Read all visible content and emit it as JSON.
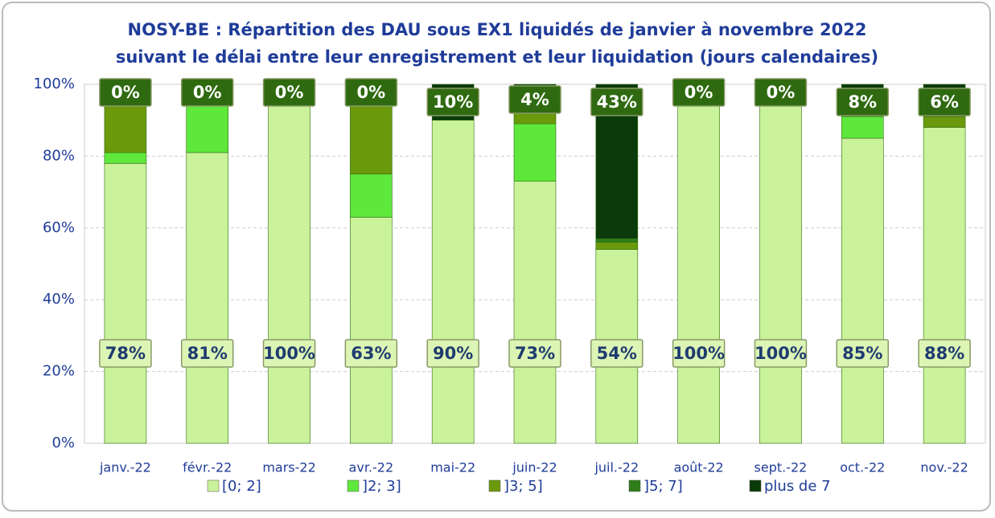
{
  "chart_data": {
    "type": "stacked_bar",
    "title": "NOSY-BE : Répartition des DAU sous EX1 liquidés de janvier à novembre 2022",
    "subtitle": "suivant le délai entre leur enregistrement et leur liquidation (jours calendaires)",
    "categories": [
      "janv.-22",
      "févr.-22",
      "mars-22",
      "avr.-22",
      "mai-22",
      "juin-22",
      "juil.-22",
      "août-22",
      "sept.-22",
      "oct.-22",
      "nov.-22"
    ],
    "series": [
      {
        "name": "[0; 2]",
        "color": "#c9f29a",
        "values": [
          78,
          81,
          100,
          63,
          90,
          73,
          54,
          100,
          100,
          85,
          88
        ],
        "value_labels": [
          "78%",
          "81%",
          "100%",
          "63%",
          "90%",
          "73%",
          "54%",
          "100%",
          "100%",
          "85%",
          "88%"
        ]
      },
      {
        "name": "]2; 3]",
        "color": "#5fe83c",
        "values": [
          3,
          15,
          0,
          12,
          0,
          16,
          0,
          0,
          0,
          6,
          0
        ]
      },
      {
        "name": "]3; 5]",
        "color": "#6a9a0c",
        "values": [
          15,
          0,
          0,
          21,
          0,
          5,
          2,
          0,
          0,
          0,
          3
        ]
      },
      {
        "name": "]5; 7]",
        "color": "#2f7d18",
        "values": [
          4,
          4,
          0,
          4,
          0,
          2,
          1,
          0,
          0,
          1,
          3
        ]
      },
      {
        "name": "plus de 7",
        "color": "#0b3a0b",
        "values": [
          0,
          0,
          0,
          0,
          10,
          4,
          43,
          0,
          0,
          8,
          6
        ],
        "value_labels": [
          "0%",
          "0%",
          "0%",
          "0%",
          "10%",
          "4%",
          "43%",
          "0%",
          "0%",
          "8%",
          "6%"
        ]
      }
    ],
    "ylim": [
      0,
      100
    ],
    "yticks": [
      {
        "value": 0,
        "label": "0%"
      },
      {
        "value": 20,
        "label": "20%"
      },
      {
        "value": 40,
        "label": "40%"
      },
      {
        "value": 60,
        "label": "60%"
      },
      {
        "value": 80,
        "label": "80%"
      },
      {
        "value": 100,
        "label": "100%"
      }
    ],
    "grid": true,
    "legend": "bottom"
  }
}
